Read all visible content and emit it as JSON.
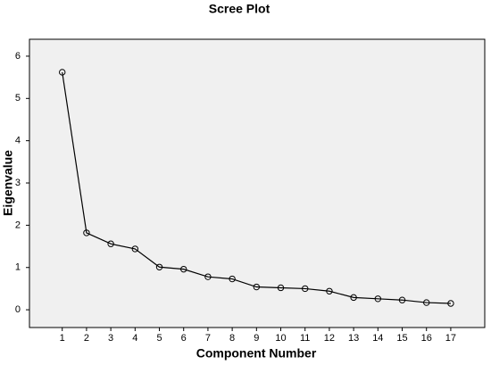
{
  "chart_data": {
    "type": "line",
    "title": "Scree Plot",
    "x_label": "Component Number",
    "y_label": "Eigenvalue",
    "x": [
      1,
      2,
      3,
      4,
      5,
      6,
      7,
      8,
      9,
      10,
      11,
      12,
      13,
      14,
      15,
      16,
      17
    ],
    "series": [
      {
        "name": "Eigenvalue",
        "color": "#000000",
        "values": [
          5.62,
          1.82,
          1.56,
          1.44,
          1.01,
          0.96,
          0.78,
          0.73,
          0.54,
          0.52,
          0.5,
          0.44,
          0.29,
          0.26,
          0.23,
          0.17,
          0.15
        ]
      }
    ],
    "xlim": [
      -0.35,
      18.4
    ],
    "ylim": [
      -0.42,
      6.4
    ],
    "xticks": [
      1,
      2,
      3,
      4,
      5,
      6,
      7,
      8,
      9,
      10,
      11,
      12,
      13,
      14,
      15,
      16,
      17
    ],
    "yticks": [
      0,
      1,
      2,
      3,
      4,
      5,
      6
    ],
    "background": "#f0f0f0",
    "grid": false
  }
}
